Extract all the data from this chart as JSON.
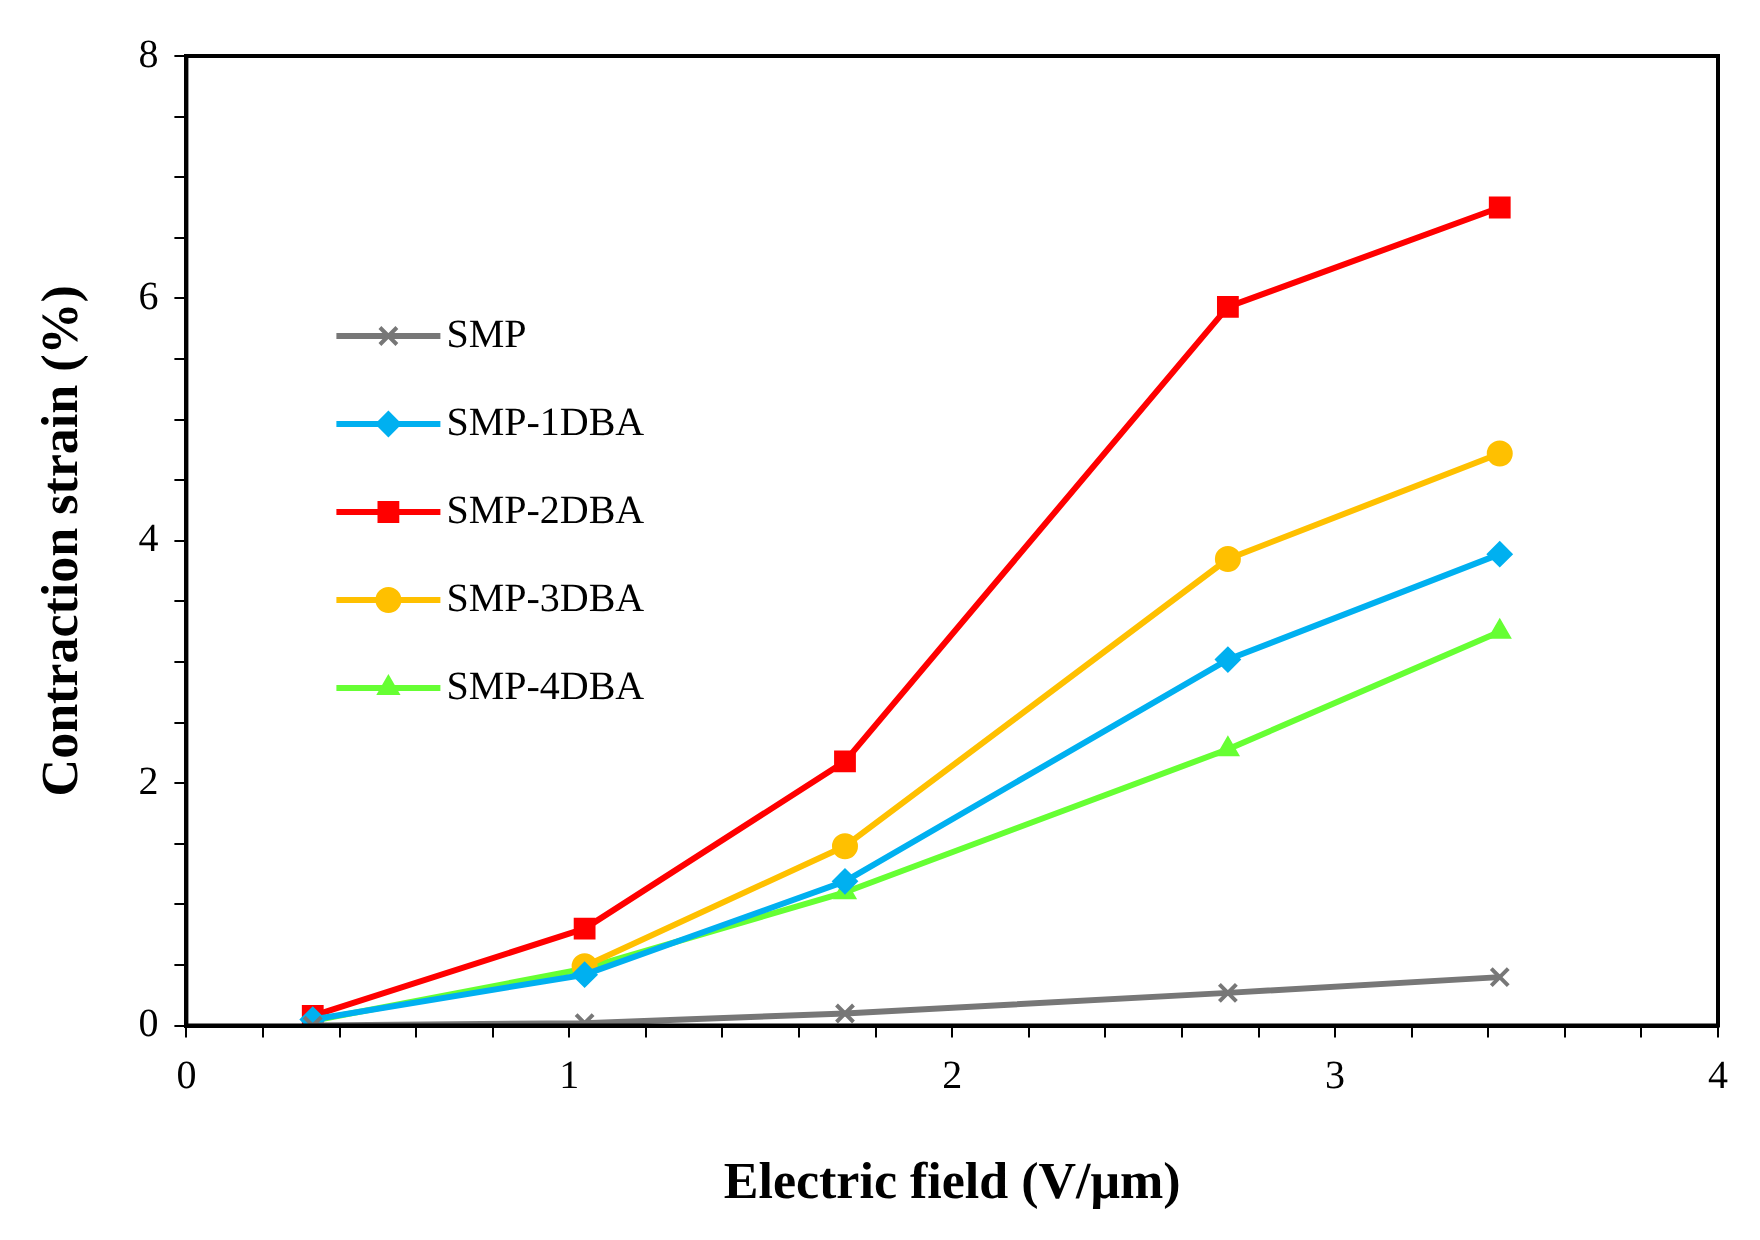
{
  "chart_data": {
    "type": "line",
    "xlabel": "Electric field (V/μm)",
    "ylabel": "Contraction strain (%)",
    "xlim": [
      0,
      4
    ],
    "ylim": [
      0,
      8
    ],
    "xticks": [
      0,
      {
        "value": 0.2,
        "label": null
      },
      {
        "value": 0.4,
        "label": null
      },
      {
        "value": 0.6,
        "label": null
      },
      {
        "value": 0.8,
        "label": null
      },
      1,
      {
        "value": 1.2,
        "label": null
      },
      {
        "value": 1.4,
        "label": null
      },
      {
        "value": 1.6,
        "label": null
      },
      {
        "value": 1.8,
        "label": null
      },
      2,
      {
        "value": 2.2,
        "label": null
      },
      {
        "value": 2.4,
        "label": null
      },
      {
        "value": 2.6,
        "label": null
      },
      {
        "value": 2.8,
        "label": null
      },
      3,
      {
        "value": 3.2,
        "label": null
      },
      {
        "value": 3.4,
        "label": null
      },
      {
        "value": 3.6,
        "label": null
      },
      {
        "value": 3.8,
        "label": null
      },
      4
    ],
    "yticks": [
      0,
      {
        "value": 0.5,
        "label": null
      },
      {
        "value": 1,
        "label": null
      },
      {
        "value": 1.5,
        "label": null
      },
      2,
      {
        "value": 2.5,
        "label": null
      },
      {
        "value": 3,
        "label": null
      },
      {
        "value": 3.5,
        "label": null
      },
      4,
      {
        "value": 4.5,
        "label": null
      },
      {
        "value": 5,
        "label": null
      },
      {
        "value": 5.5,
        "label": null
      },
      6,
      {
        "value": 6.5,
        "label": null
      },
      {
        "value": 7,
        "label": null
      },
      {
        "value": 7.5,
        "label": null
      },
      8
    ],
    "x": [
      0.33,
      1.04,
      1.72,
      2.72,
      3.43
    ],
    "grid": false,
    "legend": "top left",
    "line_style": "solid",
    "series": [
      {
        "name": "SMP",
        "color": "#777777",
        "marker": "cross",
        "values": [
          0,
          0.02,
          0.1,
          0.27,
          0.4
        ]
      },
      {
        "name": "SMP-1DBA",
        "color": "#00b0f0",
        "marker": "diamond",
        "values": [
          0.05,
          0.42,
          1.19,
          3.02,
          3.89
        ]
      },
      {
        "name": "SMP-2DBA",
        "color": "#ff0000",
        "marker": "square",
        "values": [
          0.08,
          0.8,
          2.18,
          5.93,
          6.75
        ]
      },
      {
        "name": "SMP-3DBA",
        "color": "#ffc000",
        "marker": "circle",
        "values": [
          null,
          0.49,
          1.48,
          3.85,
          4.72
        ]
      },
      {
        "name": "SMP-4DBA",
        "color": "#66ff33",
        "marker": "triangle",
        "values": [
          0.04,
          0.47,
          1.1,
          2.28,
          3.25
        ]
      }
    ]
  }
}
